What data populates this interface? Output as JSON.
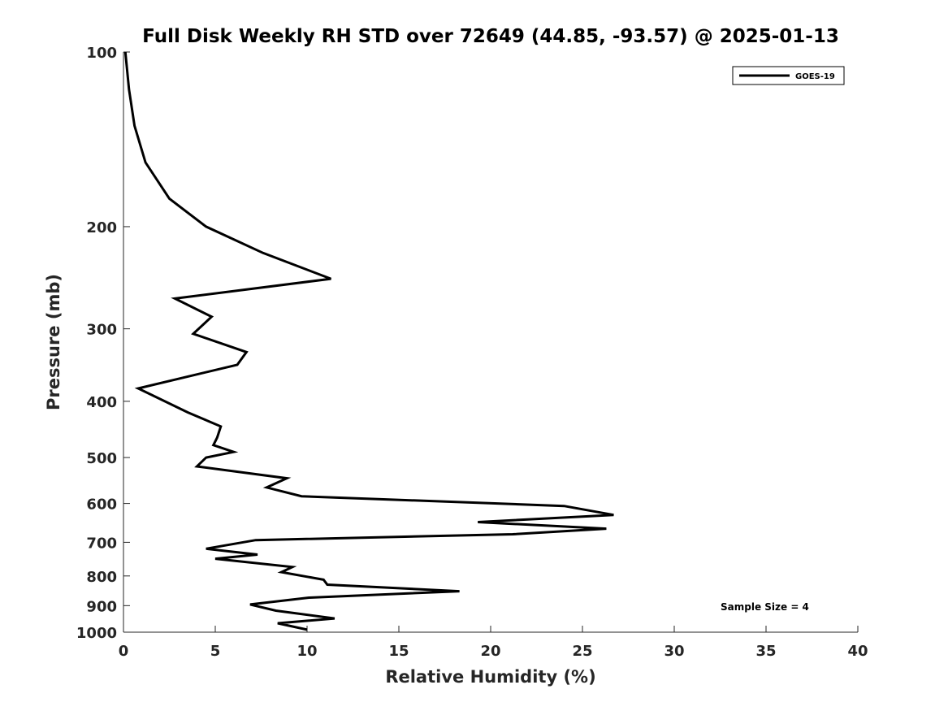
{
  "chart_data": {
    "type": "line",
    "title": "Full Disk Weekly RH STD over 72649 (44.85, -93.57) @ 2025-01-13",
    "xlabel": "Relative Humidity (%)",
    "ylabel": "Pressure (mb)",
    "xlim": [
      0,
      40
    ],
    "ylim": [
      100,
      1000
    ],
    "y_scale": "log",
    "y_reversed": true,
    "x_ticks": [
      0,
      5,
      10,
      15,
      20,
      25,
      30,
      35,
      40
    ],
    "y_ticks": [
      100,
      200,
      300,
      400,
      500,
      600,
      700,
      800,
      900,
      1000
    ],
    "grid": false,
    "legend_position": "top-right",
    "series": [
      {
        "name": "GOES-19",
        "color": "#000000",
        "x": [
          0.1,
          0.3,
          0.6,
          1.2,
          2.5,
          4.5,
          7.6,
          11.3,
          2.8,
          4.8,
          3.8,
          6.7,
          6.2,
          0.8,
          3.5,
          5.3,
          5.1,
          4.9,
          6.0,
          4.5,
          4.0,
          8.9,
          7.8,
          9.7,
          24.0,
          26.7,
          19.3,
          26.3,
          21.2,
          7.2,
          4.5,
          7.3,
          5.0,
          9.2,
          8.6,
          10.9,
          11.1,
          18.3,
          10.1,
          6.9,
          8.3,
          11.5,
          8.4,
          10.0
        ],
        "y": [
          100,
          116,
          134,
          155,
          179,
          200,
          222,
          246,
          266,
          286,
          306,
          329,
          346,
          380,
          418,
          442,
          462,
          476,
          489,
          500,
          518,
          543,
          563,
          583,
          606,
          628,
          646,
          663,
          678,
          694,
          718,
          735,
          747,
          772,
          788,
          812,
          828,
          850,
          872,
          896,
          918,
          947,
          965,
          990
        ]
      }
    ]
  },
  "legend": {
    "label": "GOES-19"
  },
  "annotation": {
    "text": "Sample Size = 4"
  }
}
